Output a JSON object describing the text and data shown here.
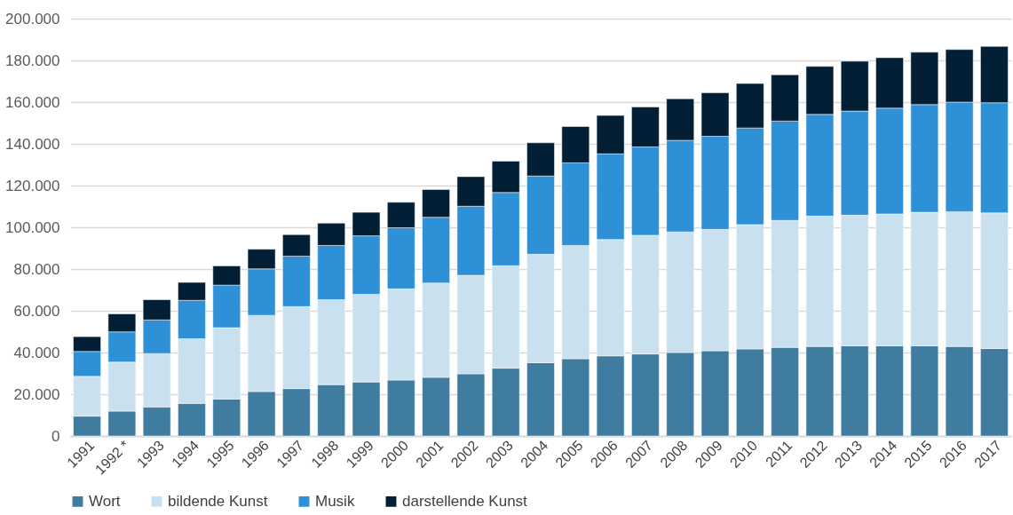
{
  "chart_data": {
    "type": "bar",
    "stacked": true,
    "categories": [
      "1991",
      "1992 *",
      "1993",
      "1994",
      "1995",
      "1996",
      "1997",
      "1998",
      "1999",
      "2000",
      "2001",
      "2002",
      "2003",
      "2004",
      "2005",
      "2006",
      "2007",
      "2008",
      "2009",
      "2010",
      "2011",
      "2012",
      "2013",
      "2014",
      "2015",
      "2016",
      "2017"
    ],
    "series": [
      {
        "name": "Wort",
        "color": "#407ca0",
        "values": [
          9500,
          11900,
          13900,
          15600,
          17700,
          21300,
          22700,
          24600,
          25900,
          26800,
          28100,
          29800,
          32500,
          35100,
          37000,
          38400,
          39300,
          40000,
          40800,
          41700,
          42500,
          42900,
          43200,
          43200,
          43200,
          42900,
          41900
        ]
      },
      {
        "name": "bildende Kunst",
        "color": "#c9e0ef",
        "values": [
          19100,
          23500,
          25600,
          31000,
          34200,
          36500,
          39300,
          40700,
          42000,
          43700,
          45200,
          47200,
          49100,
          52000,
          54300,
          55800,
          56900,
          57800,
          58200,
          59600,
          60800,
          62500,
          62600,
          63200,
          64000,
          64600,
          65000
        ]
      },
      {
        "name": "Musik",
        "color": "#2e90d6",
        "values": [
          11900,
          14500,
          16100,
          18400,
          20400,
          22300,
          24200,
          26000,
          28000,
          29300,
          31500,
          33100,
          35100,
          37500,
          39600,
          41000,
          42300,
          43900,
          44600,
          46300,
          47600,
          48700,
          49900,
          50700,
          51600,
          52500,
          52800
        ]
      },
      {
        "name": "darstellende Kunst",
        "color": "#021f35",
        "values": [
          7100,
          8600,
          9700,
          8600,
          9200,
          9400,
          10300,
          10700,
          11300,
          12200,
          13300,
          14200,
          15000,
          15900,
          17400,
          18400,
          19200,
          19900,
          20900,
          21300,
          22200,
          23000,
          23900,
          24200,
          25100,
          25200,
          27000
        ]
      }
    ],
    "ylim": [
      0,
      200000
    ],
    "yticks": [
      0,
      {
        "value": 20000,
        "label": "20.000"
      },
      {
        "value": 40000,
        "label": "40.000"
      },
      {
        "value": 60000,
        "label": "60.000"
      },
      {
        "value": 80000,
        "label": "80.000"
      },
      {
        "value": 100000,
        "label": "100.000"
      },
      {
        "value": 120000,
        "label": "120.000"
      },
      {
        "value": 140000,
        "label": "140.000"
      },
      {
        "value": 160000,
        "label": "160.000"
      },
      {
        "value": 180000,
        "label": "180.000"
      },
      {
        "value": 200000,
        "label": "200.000"
      }
    ],
    "grid": "y",
    "legend": "bottom"
  }
}
